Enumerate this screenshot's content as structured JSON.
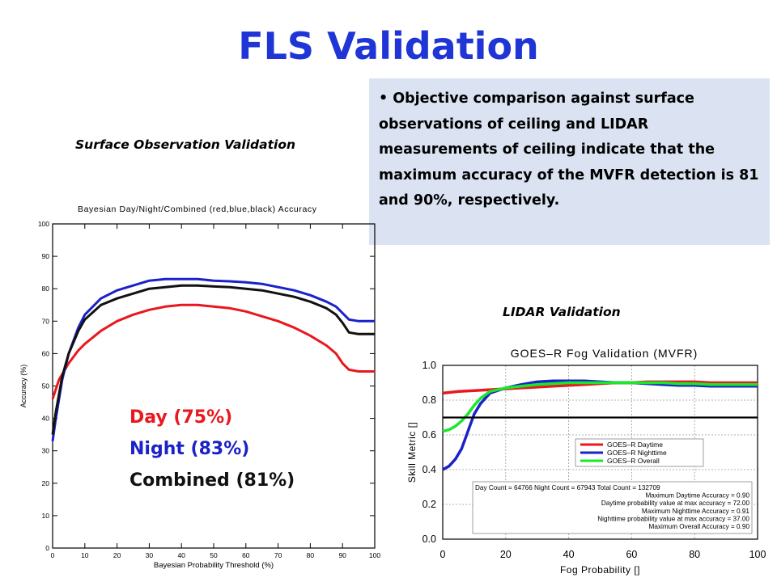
{
  "slide": {
    "title": "FLS Validation",
    "bullet": "Objective comparison against surface observations of ceiling and LIDAR measurements of ceiling indicate that the maximum accuracy of the MVFR detection is 81 and 90%, respectively.",
    "caption_surface": "Surface Observation Validation",
    "caption_lidar": "LIDAR Validation",
    "summary": [
      {
        "label": "Day (75%)",
        "color": "#e8181e"
      },
      {
        "label": "Night (83%)",
        "color": "#1a22c8"
      },
      {
        "label": "Combined (81%)",
        "color": "#111111"
      }
    ]
  },
  "chart_data": [
    {
      "type": "line",
      "title": "Bayesian Day/Night/Combined (red,blue,black) Accuracy",
      "xlabel": "Bayesian Probability Threshold (%)",
      "ylabel": "Accuracy (%)",
      "xlim": [
        0,
        100
      ],
      "ylim": [
        0,
        100
      ],
      "xticks": [
        0,
        10,
        20,
        30,
        40,
        50,
        60,
        70,
        80,
        90,
        100
      ],
      "yticks": [
        0,
        10,
        20,
        30,
        40,
        50,
        60,
        70,
        80,
        90,
        100
      ],
      "grid": false,
      "series": [
        {
          "color": "#e8181e",
          "x": [
            0,
            2,
            5,
            8,
            10,
            15,
            20,
            25,
            30,
            35,
            40,
            45,
            50,
            55,
            60,
            65,
            70,
            75,
            80,
            85,
            88,
            90,
            92,
            95,
            100
          ],
          "y": [
            46,
            52,
            57,
            61,
            63,
            67,
            70,
            72,
            73.5,
            74.5,
            75,
            75,
            74.5,
            74,
            73,
            71.5,
            70,
            68,
            65.5,
            62.5,
            60,
            57,
            55,
            54.5,
            54.5
          ]
        },
        {
          "color": "#1a22c8",
          "x": [
            0,
            1,
            3,
            5,
            8,
            10,
            15,
            20,
            25,
            30,
            35,
            40,
            45,
            50,
            55,
            60,
            65,
            70,
            75,
            80,
            85,
            88,
            90,
            92,
            95,
            100
          ],
          "y": [
            33,
            40,
            52,
            60,
            68,
            72,
            77,
            79.5,
            81,
            82.5,
            83,
            83,
            83,
            82.5,
            82.3,
            82,
            81.5,
            80.5,
            79.5,
            78,
            76,
            74.5,
            72.5,
            70.5,
            70,
            70
          ]
        },
        {
          "color": "#111111",
          "x": [
            0,
            1,
            3,
            5,
            8,
            10,
            15,
            20,
            25,
            30,
            35,
            40,
            45,
            50,
            55,
            60,
            65,
            70,
            75,
            80,
            85,
            88,
            90,
            92,
            95,
            100
          ],
          "y": [
            35,
            42,
            53,
            60,
            67,
            70.5,
            75,
            77,
            78.5,
            80,
            80.5,
            81,
            81,
            80.7,
            80.5,
            80,
            79.5,
            78.5,
            77.5,
            76,
            74,
            72,
            69.5,
            66.5,
            66,
            66
          ]
        }
      ]
    },
    {
      "type": "line",
      "title": "GOES–R Fog Validation (MVFR)",
      "xlabel": "Fog Probability []",
      "ylabel": "Skill Metric []",
      "xlim": [
        0,
        100
      ],
      "ylim": [
        0.0,
        1.0
      ],
      "xticks": [
        0,
        20,
        40,
        60,
        80,
        100
      ],
      "yticks": [
        0.0,
        0.2,
        0.4,
        0.6,
        0.8,
        1.0
      ],
      "yticklabels": [
        "0.0",
        "0.2",
        "0.4",
        "0.6",
        "0.8",
        "1.0"
      ],
      "grid": true,
      "legend_position": "center-right",
      "series": [
        {
          "name": "GOES–R Daytime",
          "color": "#e8181e",
          "x": [
            0,
            5,
            10,
            15,
            20,
            25,
            30,
            35,
            40,
            45,
            50,
            55,
            60,
            65,
            70,
            75,
            80,
            85,
            90,
            95,
            100
          ],
          "y": [
            0.84,
            0.85,
            0.855,
            0.86,
            0.865,
            0.87,
            0.875,
            0.88,
            0.885,
            0.89,
            0.895,
            0.9,
            0.9,
            0.905,
            0.905,
            0.905,
            0.905,
            0.9,
            0.9,
            0.9,
            0.9
          ]
        },
        {
          "name": "GOES–R Nighttime",
          "color": "#1a22c8",
          "x": [
            0,
            2,
            4,
            6,
            8,
            10,
            12,
            15,
            20,
            25,
            30,
            35,
            40,
            45,
            50,
            55,
            60,
            65,
            70,
            75,
            80,
            85,
            90,
            95,
            100
          ],
          "y": [
            0.4,
            0.42,
            0.46,
            0.52,
            0.62,
            0.72,
            0.78,
            0.84,
            0.87,
            0.89,
            0.905,
            0.91,
            0.91,
            0.91,
            0.905,
            0.9,
            0.9,
            0.895,
            0.89,
            0.885,
            0.885,
            0.88,
            0.88,
            0.88,
            0.88
          ]
        },
        {
          "name": "GOES–R Overall",
          "color": "#19e82a",
          "x": [
            0,
            2,
            4,
            6,
            8,
            10,
            12,
            15,
            20,
            25,
            30,
            35,
            40,
            45,
            50,
            55,
            60,
            65,
            70,
            75,
            80,
            85,
            90,
            95,
            100
          ],
          "y": [
            0.62,
            0.63,
            0.65,
            0.68,
            0.72,
            0.77,
            0.81,
            0.85,
            0.87,
            0.88,
            0.89,
            0.895,
            0.9,
            0.9,
            0.9,
            0.9,
            0.9,
            0.9,
            0.9,
            0.895,
            0.895,
            0.89,
            0.89,
            0.89,
            0.89
          ]
        },
        {
          "color": "#000000",
          "x": [
            0,
            100
          ],
          "y": [
            0.7,
            0.7
          ]
        }
      ],
      "annotations": [
        "Day Count = 64766  Night Count = 67943  Total Count = 132709",
        "Maximum Daytime Accuracy = 0.90",
        "Daytime probability value at max accuracy = 72.00",
        "Maximum Nighttime Accuracy = 0.91",
        "Nighttime probability value at max accuracy = 37.00",
        "Maximum Overall Accuracy = 0.90"
      ]
    }
  ]
}
